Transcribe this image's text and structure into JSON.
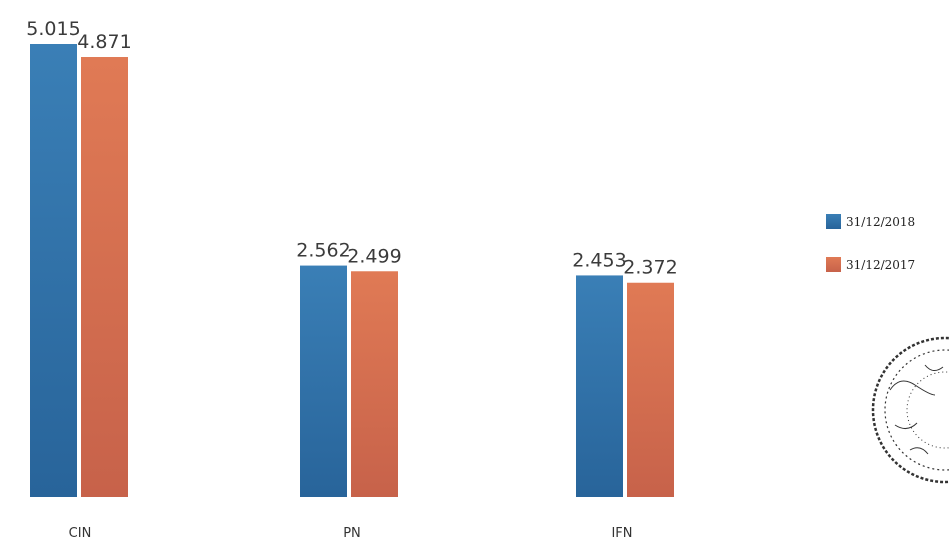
{
  "chart_data": {
    "type": "bar",
    "categories": [
      "CIN",
      "PN",
      "IFN"
    ],
    "series": [
      {
        "name": "31/12/2018",
        "values": [
          5.015,
          2.562,
          2.453
        ],
        "labels": [
          "5.015",
          "2.562",
          "2.453"
        ]
      },
      {
        "name": "31/12/2017",
        "values": [
          4.871,
          2.499,
          2.372
        ],
        "labels": [
          "4.871",
          "2.499",
          "2.372"
        ]
      }
    ],
    "ylim": [
      0,
      5.015
    ],
    "grid": false,
    "legend": "right",
    "title": "",
    "xlabel": "",
    "ylabel": ""
  },
  "colors": {
    "series_2018": "#2e6fa6",
    "series_2017": "#d9704d",
    "background": "#ffffff"
  },
  "decorations": {
    "stamp": "circular-stamp-icon"
  }
}
